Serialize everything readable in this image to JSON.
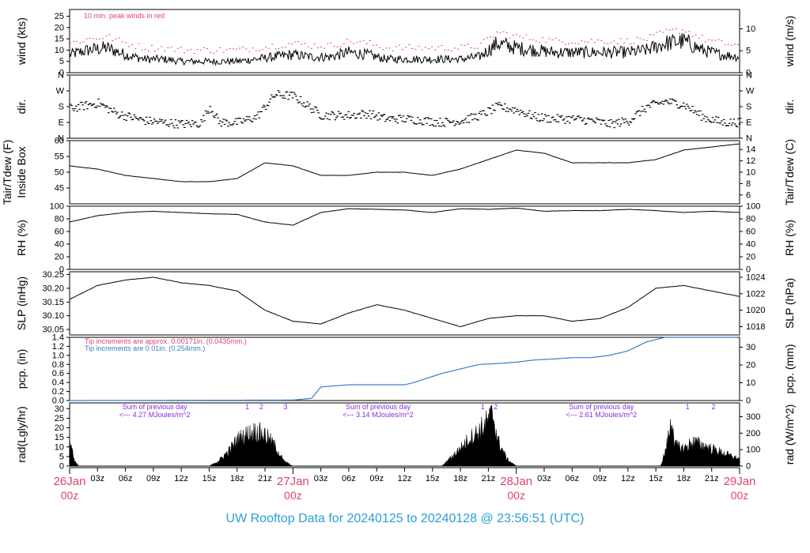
{
  "footer_title": "UW Rooftop Data for 20240125  to  20240128 @ 23:56:51  (UTC)",
  "colors": {
    "red": "#e0436a",
    "blue": "#3b7dc8",
    "purple": "#8a2be2",
    "black": "#000000",
    "footer": "#2a9fd6"
  },
  "x_axis": {
    "ticks": [
      "03z",
      "06z",
      "09z",
      "12z",
      "15z",
      "18z",
      "21z",
      "03z",
      "06z",
      "09z",
      "12z",
      "15z",
      "18z",
      "21z",
      "03z",
      "06z",
      "09z",
      "12z",
      "15z",
      "18z",
      "21z"
    ],
    "tick_hours": [
      3,
      6,
      9,
      12,
      15,
      18,
      21,
      27,
      30,
      33,
      36,
      39,
      42,
      45,
      51,
      54,
      57,
      60,
      63,
      66,
      69
    ],
    "day_labels": [
      {
        "date": "26Jan",
        "time": "00z",
        "hour": 0
      },
      {
        "date": "27Jan",
        "time": "00z",
        "hour": 24
      },
      {
        "date": "28Jan",
        "time": "00z",
        "hour": 48
      },
      {
        "date": "29Jan",
        "time": "00z",
        "hour": 72
      }
    ],
    "range_hours": [
      0,
      72
    ]
  },
  "chart_data": [
    {
      "id": "wind",
      "type": "line",
      "left_label": "wind (kts)",
      "right_label": "wind (m/s)",
      "ylim": [
        0,
        28
      ],
      "left_ticks": [
        "0",
        "5",
        "10",
        "15",
        "20",
        "25"
      ],
      "left_tick_values": [
        0,
        5,
        10,
        15,
        20,
        25
      ],
      "right_ticks": [
        "0",
        "5",
        "10"
      ],
      "right_tick_values": [
        0,
        9.72,
        19.44
      ],
      "annotation": "10 min. peak winds in red",
      "series": [
        {
          "style": "mean",
          "key_hours": [
            0,
            2,
            4,
            6,
            8,
            10,
            12,
            14,
            16,
            18,
            20,
            22,
            24,
            26,
            28,
            30,
            32,
            34,
            36,
            38,
            40,
            42,
            44,
            46,
            48,
            50,
            52,
            54,
            56,
            58,
            60,
            62,
            64,
            66,
            68,
            70,
            72
          ],
          "values": [
            8,
            10,
            11,
            8,
            6,
            6,
            5,
            5,
            5,
            5,
            6,
            7,
            8,
            7,
            7,
            9,
            8,
            6,
            6,
            6,
            6,
            6,
            7,
            13,
            11,
            10,
            9,
            9,
            9,
            9,
            9,
            10,
            13,
            14,
            10,
            8,
            7
          ]
        },
        {
          "style": "peak",
          "offset": 5
        }
      ]
    },
    {
      "id": "dir",
      "type": "scatter",
      "left_label": "dir.",
      "right_label": "dir.",
      "ylim": [
        0,
        360
      ],
      "left_ticks": [
        "N",
        "E",
        "S",
        "W",
        "N"
      ],
      "left_tick_values": [
        0,
        90,
        180,
        270,
        360
      ],
      "right_ticks": [
        "N",
        "E",
        "S",
        "W",
        "N"
      ],
      "right_tick_values": [
        0,
        90,
        180,
        270,
        360
      ],
      "series": [
        {
          "key_hours": [
            0,
            3,
            5,
            8,
            10,
            12,
            14,
            15,
            16,
            18,
            20,
            22,
            24,
            27,
            30,
            32,
            34,
            36,
            38,
            40,
            42,
            44,
            46,
            48,
            50,
            52,
            54,
            56,
            58,
            60,
            62,
            64,
            66,
            68,
            70,
            72
          ],
          "values": [
            170,
            200,
            140,
            100,
            90,
            80,
            85,
            180,
            90,
            90,
            120,
            250,
            240,
            130,
            130,
            140,
            110,
            110,
            100,
            90,
            100,
            130,
            180,
            160,
            120,
            110,
            110,
            100,
            80,
            100,
            180,
            210,
            190,
            120,
            90,
            90
          ]
        }
      ]
    },
    {
      "id": "temp",
      "type": "line",
      "left_label": "Tair/Tdew (F)",
      "left_label2": "Inside Box",
      "right_label": "Tair/Tdew (C)",
      "ylim": [
        40,
        60
      ],
      "left_ticks": [
        "45",
        "50",
        "55",
        "60"
      ],
      "left_tick_values": [
        45,
        50,
        55,
        60
      ],
      "right_ticks": [
        "6",
        "8",
        "10",
        "12",
        "14"
      ],
      "right_tick_values": [
        42.8,
        46.4,
        50,
        53.6,
        57.2
      ],
      "series": [
        {
          "key_hours": [
            0,
            3,
            6,
            9,
            12,
            15,
            18,
            21,
            24,
            27,
            30,
            33,
            36,
            39,
            42,
            45,
            48,
            51,
            54,
            57,
            60,
            63,
            66,
            69,
            72
          ],
          "values": [
            52,
            51,
            49,
            48,
            47,
            47,
            48,
            53,
            52,
            49,
            49,
            50,
            50,
            49,
            51,
            54,
            57,
            56,
            53,
            53,
            53,
            54,
            57,
            58,
            59
          ]
        }
      ]
    },
    {
      "id": "rh",
      "type": "line",
      "left_label": "RH (%)",
      "right_label": "RH (%)",
      "ylim": [
        0,
        100
      ],
      "left_ticks": [
        "0",
        "20",
        "40",
        "60",
        "80",
        "100"
      ],
      "left_tick_values": [
        0,
        20,
        40,
        60,
        80,
        100
      ],
      "right_ticks": [
        "0",
        "20",
        "40",
        "60",
        "80",
        "100"
      ],
      "right_tick_values": [
        0,
        20,
        40,
        60,
        80,
        100
      ],
      "series": [
        {
          "key_hours": [
            0,
            3,
            6,
            9,
            12,
            15,
            18,
            21,
            24,
            27,
            30,
            33,
            36,
            39,
            42,
            45,
            48,
            51,
            54,
            57,
            60,
            63,
            66,
            69,
            72
          ],
          "values": [
            75,
            85,
            90,
            92,
            90,
            88,
            87,
            75,
            70,
            90,
            96,
            95,
            94,
            90,
            96,
            95,
            97,
            92,
            93,
            93,
            95,
            93,
            90,
            92,
            90
          ]
        }
      ]
    },
    {
      "id": "slp",
      "type": "line",
      "left_label": "SLP (inHg)",
      "right_label": "SLP (hPa)",
      "ylim": [
        30.03,
        30.26
      ],
      "left_ticks": [
        "30.05",
        "30.10",
        "30.15",
        "30.20",
        "30.25"
      ],
      "left_tick_values": [
        30.05,
        30.1,
        30.15,
        30.2,
        30.25
      ],
      "right_ticks": [
        "1018",
        "1020",
        "1022",
        "1024"
      ],
      "right_tick_values": [
        30.06,
        30.12,
        30.18,
        30.24
      ],
      "series": [
        {
          "key_hours": [
            0,
            3,
            6,
            9,
            12,
            15,
            18,
            21,
            24,
            27,
            30,
            33,
            36,
            39,
            42,
            45,
            48,
            51,
            54,
            57,
            60,
            63,
            66,
            69,
            72
          ],
          "values": [
            30.16,
            30.21,
            30.23,
            30.24,
            30.22,
            30.21,
            30.19,
            30.12,
            30.08,
            30.07,
            30.11,
            30.14,
            30.12,
            30.09,
            30.06,
            30.09,
            30.1,
            30.1,
            30.08,
            30.09,
            30.13,
            30.2,
            30.21,
            30.19,
            30.17
          ]
        }
      ]
    },
    {
      "id": "pcp",
      "type": "area",
      "left_label": "pcp. (in)",
      "right_label": "pcp. (mm)",
      "ylim": [
        0,
        1.4
      ],
      "left_ticks": [
        "0.0",
        "0.2",
        "0.4",
        "0.6",
        "0.8",
        "1.0",
        "1.2",
        "1.4"
      ],
      "left_tick_values": [
        0,
        0.2,
        0.4,
        0.6,
        0.8,
        1.0,
        1.2,
        1.4
      ],
      "right_ticks": [
        "0",
        "10",
        "20",
        "30"
      ],
      "right_tick_values": [
        0,
        0.394,
        0.787,
        1.181
      ],
      "annotations": [
        {
          "text": "Tip increments are approx. 0.00171in. (0.0435mm.)",
          "color": "red"
        },
        {
          "text": "Tip increments are 0.01in. (0.254mm.)",
          "color": "blue"
        }
      ],
      "series": [
        {
          "key_hours": [
            0,
            24,
            26,
            27,
            30,
            33,
            36,
            37,
            40,
            42,
            44,
            46,
            48,
            50,
            52,
            54,
            56,
            58,
            60,
            62,
            64,
            66,
            72
          ],
          "values": [
            0,
            0.01,
            0.05,
            0.3,
            0.35,
            0.35,
            0.35,
            0.4,
            0.6,
            0.7,
            0.8,
            0.82,
            0.85,
            0.9,
            0.92,
            0.95,
            0.95,
            1.0,
            1.1,
            1.3,
            1.4,
            1.4,
            1.4
          ]
        }
      ]
    },
    {
      "id": "rad",
      "type": "area",
      "left_label": "rad(Lgly/hr)",
      "right_label": "rad (W/m^2)",
      "ylim": [
        0,
        33
      ],
      "left_ticks": [
        "0",
        "5",
        "10",
        "15",
        "20",
        "25",
        "30"
      ],
      "left_tick_values": [
        0,
        5,
        10,
        15,
        20,
        25,
        30
      ],
      "right_ticks": [
        "0",
        "100",
        "200",
        "300"
      ],
      "right_tick_values": [
        0,
        8.6,
        17.2,
        25.8
      ],
      "day_sums": [
        {
          "text1": "Sum of previous day",
          "text2": "<--- 4.27 MJoules/m^2",
          "hour": 8.3
        },
        {
          "text1": "Sum of previous day",
          "text2": "<--- 3.14 MJoules/m^2",
          "hour": 32.3
        },
        {
          "text1": "Sum of previous day",
          "text2": "<--- 2.61 MJoules/m^2",
          "hour": 56.3
        }
      ],
      "markers": [
        {
          "text": "1",
          "hour": 19.1
        },
        {
          "text": "2",
          "hour": 20.6
        },
        {
          "text": "3",
          "hour": 23.2
        },
        {
          "text": "1",
          "hour": 44.4
        },
        {
          "text": "2",
          "hour": 45.8
        },
        {
          "text": "1",
          "hour": 66.4
        },
        {
          "text": "2",
          "hour": 69.2
        }
      ],
      "series": [
        {
          "key_hours": [
            0,
            0.5,
            1,
            15,
            16,
            17,
            18,
            19,
            20,
            21,
            22,
            23,
            24,
            40,
            41,
            42,
            43,
            44,
            45,
            45.5,
            46,
            47,
            48,
            63.5,
            64,
            64.8,
            65,
            66,
            67,
            68,
            69,
            70,
            71,
            72
          ],
          "values": [
            15,
            3,
            0,
            0,
            3,
            8,
            15,
            18,
            20,
            18,
            12,
            3,
            0,
            0,
            5,
            10,
            16,
            20,
            26,
            30,
            15,
            4,
            0,
            0,
            8,
            28,
            12,
            10,
            14,
            12,
            10,
            8,
            6,
            4
          ]
        }
      ]
    }
  ]
}
